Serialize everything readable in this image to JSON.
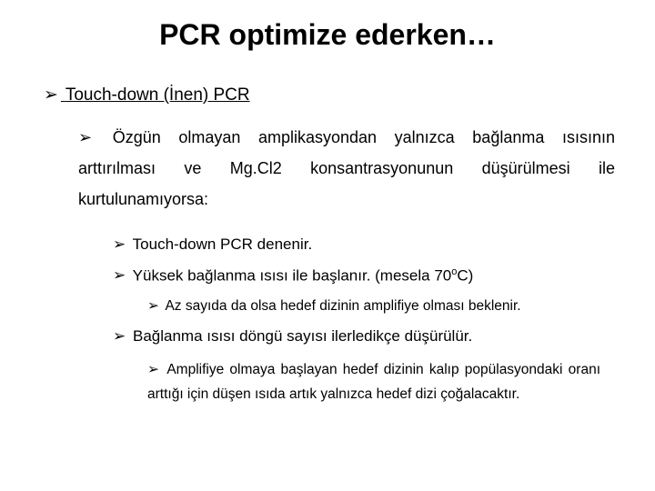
{
  "title": "PCR optimize ederken…",
  "bullet_glyph": "➢",
  "lvl1": "Touch-down (İnen) PCR",
  "lvl2_prefix": "Özgün olmayan amplikasyondan yalnızca bağlanma ısısının arttırılması ve Mg.Cl",
  "lvl2_sub": "2",
  "lvl2_suffix": " konsantrasyonunun düşürülmesi ile kurtulunamıyorsa:",
  "lvl3a": "Touch-down PCR denenir.",
  "lvl3b_prefix": "Yüksek bağlanma ısısı ile başlanır. (mesela 70",
  "lvl3b_sup": "o",
  "lvl3b_suffix": "C)",
  "lvl4a": "Az sayıda da olsa hedef dizinin amplifiye olması beklenir.",
  "lvl3c": "Bağlanma ısısı döngü sayısı ilerledikçe düşürülür.",
  "lvl4b": "Amplifiye olmaya başlayan hedef dizinin kalıp popülasyondaki oranı arttığı için düşen ısıda artık yalnızca hedef dizi çoğalacaktır.",
  "colors": {
    "text": "#000000",
    "background": "#ffffff"
  }
}
